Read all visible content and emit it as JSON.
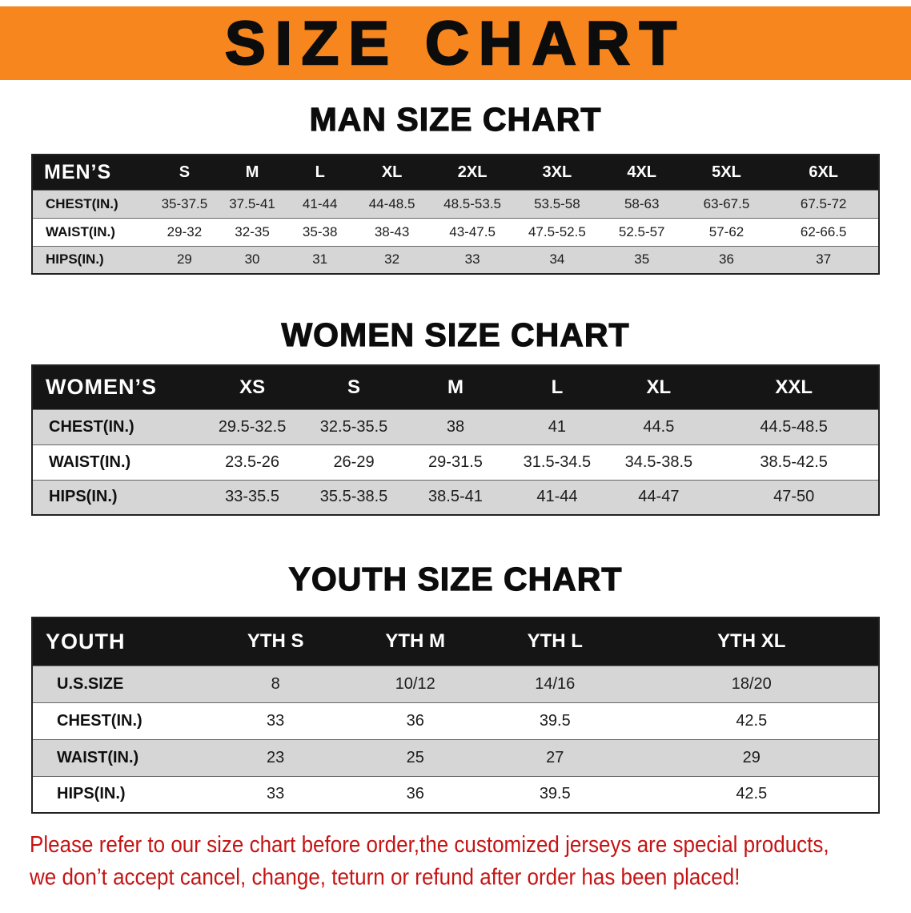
{
  "banner": {
    "title": "SIZE CHART"
  },
  "colors": {
    "banner_bg": "#f6861d",
    "table_header_bg": "#151515",
    "shaded_row_bg": "#d6d6d6",
    "disclaimer_red": "#c51414"
  },
  "chart_data": [
    {
      "type": "table",
      "title": "MAN SIZE CHART",
      "columns": [
        "MEN’S",
        "S",
        "M",
        "L",
        "XL",
        "2XL",
        "3XL",
        "4XL",
        "5XL",
        "6XL"
      ],
      "rows": [
        [
          "CHEST(IN.)",
          "35-37.5",
          "37.5-41",
          "41-44",
          "44-48.5",
          "48.5-53.5",
          "53.5-58",
          "58-63",
          "63-67.5",
          "67.5-72"
        ],
        [
          "WAIST(IN.)",
          "29-32",
          "32-35",
          "35-38",
          "38-43",
          "43-47.5",
          "47.5-52.5",
          "52.5-57",
          "57-62",
          "62-66.5"
        ],
        [
          "HIPS(IN.)",
          "29",
          "30",
          "31",
          "32",
          "33",
          "34",
          "35",
          "36",
          "37"
        ]
      ]
    },
    {
      "type": "table",
      "title": "WOMEN SIZE CHART",
      "columns": [
        "WOMEN’S",
        "XS",
        "S",
        "M",
        "L",
        "XL",
        "XXL"
      ],
      "rows": [
        [
          "CHEST(IN.)",
          "29.5-32.5",
          "32.5-35.5",
          "38",
          "41",
          "44.5",
          "44.5-48.5"
        ],
        [
          "WAIST(IN.)",
          "23.5-26",
          "26-29",
          "29-31.5",
          "31.5-34.5",
          "34.5-38.5",
          "38.5-42.5"
        ],
        [
          "HIPS(IN.)",
          "33-35.5",
          "35.5-38.5",
          "38.5-41",
          "41-44",
          "44-47",
          "47-50"
        ]
      ]
    },
    {
      "type": "table",
      "title": "YOUTH SIZE CHART",
      "columns": [
        "YOUTH",
        "YTH S",
        "YTH M",
        "YTH L",
        "YTH XL"
      ],
      "rows": [
        [
          "U.S.SIZE",
          "8",
          "10/12",
          "14/16",
          "18/20"
        ],
        [
          "CHEST(IN.)",
          "33",
          "36",
          "39.5",
          "42.5"
        ],
        [
          "WAIST(IN.)",
          "23",
          "25",
          "27",
          "29"
        ],
        [
          "HIPS(IN.)",
          "33",
          "36",
          "39.5",
          "42.5"
        ]
      ]
    }
  ],
  "disclaimer": {
    "lines": [
      "Please refer to our size chart before order,the customized jerseys are special products,",
      "we don’t accept cancel, change, teturn or refund after order has been placed!"
    ]
  }
}
